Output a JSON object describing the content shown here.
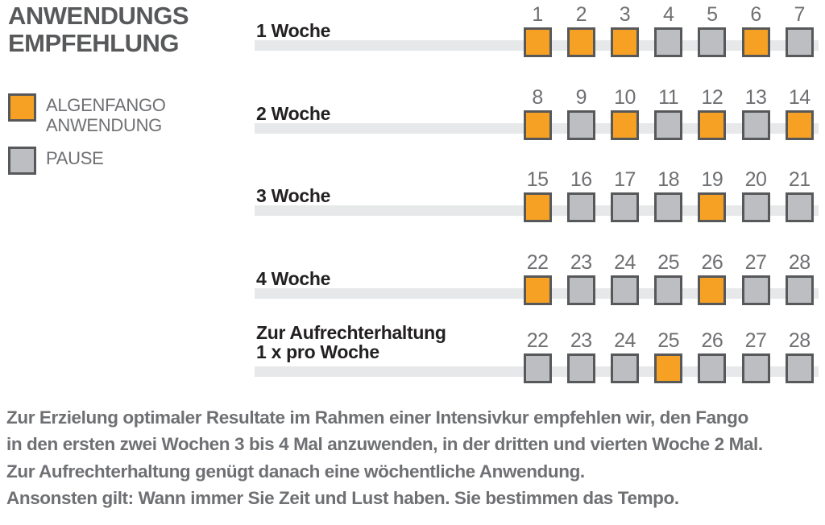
{
  "title": {
    "line1": "ANWENDUNGS",
    "line2": "EMPFEHLUNG"
  },
  "legend": {
    "items": [
      {
        "id": "anwendung",
        "lines": [
          "ALGENFANGO",
          "ANWENDUNG"
        ]
      },
      {
        "id": "pause",
        "lines": [
          "PAUSE"
        ]
      }
    ]
  },
  "schedule": {
    "rows": [
      {
        "label_lines": [
          "1 Woche"
        ],
        "days": [
          {
            "n": "1",
            "state": "anwendung"
          },
          {
            "n": "2",
            "state": "anwendung"
          },
          {
            "n": "3",
            "state": "anwendung"
          },
          {
            "n": "4",
            "state": "pause"
          },
          {
            "n": "5",
            "state": "pause"
          },
          {
            "n": "6",
            "state": "anwendung"
          },
          {
            "n": "7",
            "state": "pause"
          }
        ]
      },
      {
        "label_lines": [
          "2 Woche"
        ],
        "days": [
          {
            "n": "8",
            "state": "anwendung"
          },
          {
            "n": "9",
            "state": "pause"
          },
          {
            "n": "10",
            "state": "anwendung"
          },
          {
            "n": "11",
            "state": "pause"
          },
          {
            "n": "12",
            "state": "anwendung"
          },
          {
            "n": "13",
            "state": "pause"
          },
          {
            "n": "14",
            "state": "anwendung"
          }
        ]
      },
      {
        "label_lines": [
          "3 Woche"
        ],
        "days": [
          {
            "n": "15",
            "state": "anwendung"
          },
          {
            "n": "16",
            "state": "pause"
          },
          {
            "n": "17",
            "state": "pause"
          },
          {
            "n": "18",
            "state": "pause"
          },
          {
            "n": "19",
            "state": "anwendung"
          },
          {
            "n": "20",
            "state": "pause"
          },
          {
            "n": "21",
            "state": "pause"
          }
        ]
      },
      {
        "label_lines": [
          "4 Woche"
        ],
        "days": [
          {
            "n": "22",
            "state": "anwendung"
          },
          {
            "n": "23",
            "state": "pause"
          },
          {
            "n": "24",
            "state": "pause"
          },
          {
            "n": "25",
            "state": "pause"
          },
          {
            "n": "26",
            "state": "anwendung"
          },
          {
            "n": "27",
            "state": "pause"
          },
          {
            "n": "28",
            "state": "pause"
          }
        ]
      },
      {
        "label_lines": [
          "Zur Aufrechterhaltung",
          "1 x pro Woche"
        ],
        "days": [
          {
            "n": "22",
            "state": "pause"
          },
          {
            "n": "23",
            "state": "pause"
          },
          {
            "n": "24",
            "state": "pause"
          },
          {
            "n": "25",
            "state": "anwendung"
          },
          {
            "n": "26",
            "state": "pause"
          },
          {
            "n": "27",
            "state": "pause"
          },
          {
            "n": "28",
            "state": "pause"
          }
        ]
      }
    ]
  },
  "footer": {
    "lines": [
      "Zur Erzielung optimaler Resultate im Rahmen einer Intensivkur empfehlen wir, den Fango",
      "in den ersten zwei Wochen 3 bis 4 Mal anzuwenden, in der dritten und vierten Woche 2 Mal.",
      "Zur Aufrechterhaltung genügt danach eine wöchentliche Anwendung.",
      "Ansonsten gilt: Wann immer Sie Zeit und Lust haben. Sie bestimmen das Tempo."
    ]
  },
  "colors": {
    "anwendung": "#F6A124",
    "pause": "#BDBEC1",
    "square_border": "#57585A",
    "track": "#E7E8E9",
    "title_text": "#58595B",
    "label_text": "#232022",
    "muted_text": "#6F7073"
  }
}
